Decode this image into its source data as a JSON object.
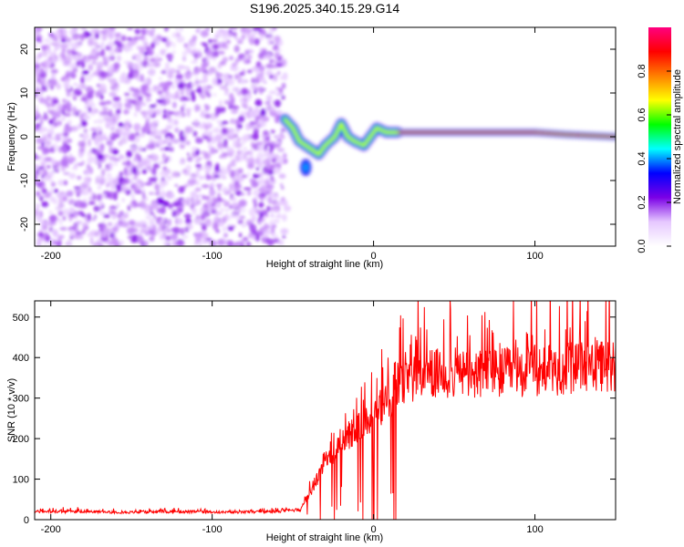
{
  "chart_data": [
    {
      "type": "heatmap",
      "title": "S196.2025.340.15.29.G14",
      "xlabel": "Height of straight line (km)",
      "ylabel": "Frequency (Hz)",
      "xlim": [
        -210,
        150
      ],
      "ylim": [
        -25,
        25
      ],
      "x_ticks": [
        -200,
        -100,
        0,
        100
      ],
      "y_ticks": [
        -20,
        -10,
        0,
        10,
        20
      ],
      "colorbar": {
        "label": "Normalized spectral amplitude",
        "range": [
          0,
          1
        ],
        "ticks": [
          "0.0",
          "0.2",
          "0.4",
          "0.6",
          "0.8"
        ],
        "colors": [
          "#ffffff",
          "#e6c8ff",
          "#7a00e6",
          "#0000ff",
          "#00ffff",
          "#00ff00",
          "#ffff00",
          "#ff8000",
          "#ff0000",
          "#ff0080"
        ]
      },
      "noise_region": {
        "x_from": -210,
        "x_to": -55,
        "amplitude": 0.15
      },
      "ridge": [
        {
          "x": -55,
          "y": 4
        },
        {
          "x": -50,
          "y": 2
        },
        {
          "x": -46,
          "y": -1
        },
        {
          "x": -42,
          "y": -2
        },
        {
          "x": -38,
          "y": -3
        },
        {
          "x": -34,
          "y": -4
        },
        {
          "x": -30,
          "y": -2
        },
        {
          "x": -24,
          "y": 0
        },
        {
          "x": -20,
          "y": 3
        },
        {
          "x": -16,
          "y": 0
        },
        {
          "x": -12,
          "y": -1
        },
        {
          "x": -6,
          "y": -2
        },
        {
          "x": -2,
          "y": 0
        },
        {
          "x": 2,
          "y": 2
        },
        {
          "x": 8,
          "y": 1
        },
        {
          "x": 15,
          "y": 1
        },
        {
          "x": 100,
          "y": 1
        },
        {
          "x": 120,
          "y": 0.5
        },
        {
          "x": 150,
          "y": 0
        }
      ],
      "side_blob": {
        "x": -42,
        "y": -7,
        "amplitude": 0.3
      }
    },
    {
      "type": "line",
      "xlabel": "Height of straight line (km)",
      "ylabel": "SNR (10 * v/v)",
      "xlim": [
        -210,
        150
      ],
      "ylim": [
        0,
        540
      ],
      "x_ticks": [
        -200,
        -100,
        0,
        100
      ],
      "y_ticks": [
        0,
        100,
        200,
        300,
        400,
        500
      ],
      "color": "#ff0000",
      "series": [
        {
          "name": "SNR",
          "x": [
            -210,
            -180,
            -150,
            -120,
            -90,
            -60,
            -45,
            -40,
            -35,
            -30,
            -25,
            -20,
            -15,
            -10,
            -5,
            0,
            5,
            10,
            15,
            20,
            30,
            40,
            50,
            60,
            70,
            80,
            90,
            100,
            110,
            120,
            130,
            140,
            150
          ],
          "values": [
            20,
            20,
            18,
            20,
            18,
            20,
            25,
            60,
            100,
            150,
            160,
            200,
            210,
            225,
            240,
            260,
            280,
            300,
            320,
            340,
            355,
            360,
            362,
            358,
            360,
            362,
            365,
            368,
            370,
            372,
            375,
            378,
            380
          ]
        }
      ]
    }
  ]
}
